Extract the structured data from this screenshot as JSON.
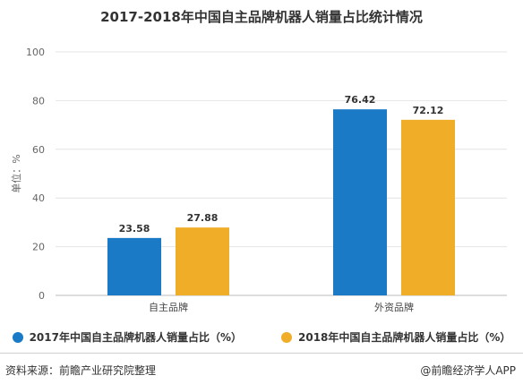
{
  "chart_data": {
    "type": "bar",
    "title": "2017-2018年中国自主品牌机器人销量占比统计情况",
    "ylabel": "单位：%",
    "xlabel": "",
    "ylim": [
      0,
      100
    ],
    "yticks": [
      0,
      20,
      40,
      60,
      80,
      100
    ],
    "grid": true,
    "categories": [
      "自主品牌",
      "外资品牌"
    ],
    "series": [
      {
        "name": "2017年中国自主品牌机器人销量占比（%）",
        "color": "#1b7ac6",
        "values": [
          23.58,
          76.42
        ]
      },
      {
        "name": "2018年中国自主品牌机器人销量占比（%）",
        "color": "#f0ad28",
        "values": [
          27.88,
          72.12
        ]
      }
    ],
    "legend_position": "bottom"
  },
  "footer": {
    "source": "资料来源：前瞻产业研究院整理",
    "credit": "@前瞻经济学人APP"
  }
}
